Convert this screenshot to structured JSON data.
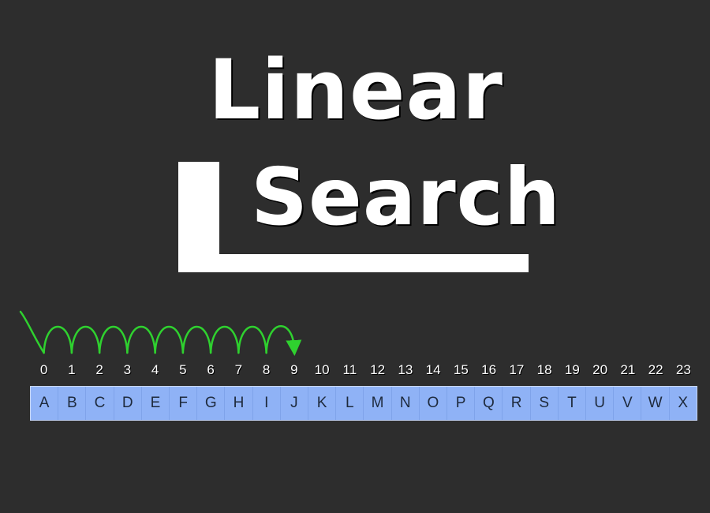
{
  "title": {
    "line1": "Linear",
    "line2": "Search"
  },
  "colors": {
    "background": "#2d2d2d",
    "title": "#ffffff",
    "array_cell": "#8fb2f6",
    "array_text": "#1e2a3c",
    "arrow": "#2fd12f"
  },
  "array": {
    "indices": [
      "0",
      "1",
      "2",
      "3",
      "4",
      "5",
      "6",
      "7",
      "8",
      "9",
      "10",
      "11",
      "12",
      "13",
      "14",
      "15",
      "16",
      "17",
      "18",
      "19",
      "20",
      "21",
      "22",
      "23"
    ],
    "letters": [
      "A",
      "B",
      "C",
      "D",
      "E",
      "F",
      "G",
      "H",
      "I",
      "J",
      "K",
      "L",
      "M",
      "N",
      "O",
      "P",
      "Q",
      "R",
      "S",
      "T",
      "U",
      "V",
      "W",
      "X"
    ]
  },
  "search_path": {
    "from_index": 0,
    "to_index": 9
  }
}
